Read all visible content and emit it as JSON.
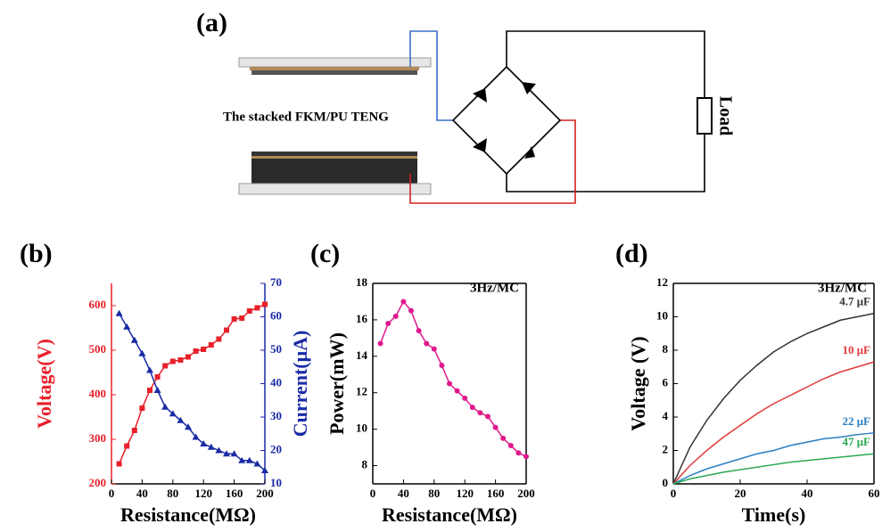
{
  "diagram": {
    "label": "(a)",
    "caption": "The stacked FKM/PU TENG",
    "load": "Load"
  },
  "chart_data": [
    {
      "type": "line",
      "label": "(b)",
      "xlabel": "Resistance(MΩ)",
      "ylabel": "Voltage(V)",
      "y2label": "Current(μA)",
      "x": [
        10,
        20,
        30,
        40,
        50,
        60,
        70,
        80,
        90,
        100,
        110,
        120,
        130,
        140,
        150,
        160,
        170,
        180,
        190,
        200
      ],
      "xlim": [
        0,
        200
      ],
      "xticks": [
        0,
        40,
        80,
        120,
        160,
        200
      ],
      "ylim": [
        200,
        650
      ],
      "yticks": [
        200,
        300,
        400,
        500,
        600
      ],
      "y2lim": [
        10,
        70
      ],
      "y2ticks": [
        10,
        20,
        30,
        40,
        50,
        60,
        70
      ],
      "series": [
        {
          "color": "#e8202a",
          "marker": "square",
          "values": [
            245,
            285,
            320,
            370,
            410,
            440,
            465,
            475,
            478,
            485,
            498,
            502,
            512,
            525,
            545,
            570,
            572,
            588,
            595,
            603
          ]
        },
        {
          "color": "#1a2aa5",
          "marker": "triangle",
          "axis": "y2",
          "values": [
            61,
            57,
            53,
            49,
            44,
            38,
            33,
            31,
            29,
            27,
            24,
            22,
            21,
            20,
            19,
            19,
            17,
            17,
            16,
            14
          ]
        }
      ]
    },
    {
      "type": "line",
      "label": "(c)",
      "xlabel": "Resistance(MΩ)",
      "ylabel": "Power(mW)",
      "annotation": "3Hz/MC",
      "x": [
        10,
        20,
        30,
        40,
        50,
        60,
        70,
        80,
        90,
        100,
        110,
        120,
        130,
        140,
        150,
        160,
        170,
        180,
        190,
        200
      ],
      "xlim": [
        0,
        200
      ],
      "xticks": [
        0,
        40,
        80,
        120,
        160,
        200
      ],
      "ylim": [
        7,
        18
      ],
      "yticks": [
        8,
        10,
        12,
        14,
        16,
        18
      ],
      "series": [
        {
          "color": "#e0198c",
          "marker": "circle",
          "values": [
            14.7,
            15.8,
            16.2,
            17.0,
            16.5,
            15.4,
            14.7,
            14.4,
            13.5,
            12.5,
            12.1,
            11.7,
            11.2,
            10.9,
            10.7,
            10.1,
            9.5,
            9.1,
            8.7,
            8.5
          ]
        }
      ]
    },
    {
      "type": "line",
      "label": "(d)",
      "xlabel": "Time(s)",
      "ylabel": "Voltage (V)",
      "annotation": "3Hz/MC",
      "x": [
        0,
        5,
        10,
        15,
        20,
        25,
        30,
        35,
        40,
        45,
        50,
        55,
        60
      ],
      "xlim": [
        0,
        60
      ],
      "xticks": [
        0,
        20,
        40,
        60
      ],
      "ylim": [
        0,
        12
      ],
      "yticks": [
        0,
        2,
        4,
        6,
        8,
        10,
        12
      ],
      "series": [
        {
          "name": "4.7 μF",
          "color": "#333333",
          "values": [
            0,
            2.2,
            3.8,
            5.1,
            6.2,
            7.1,
            7.9,
            8.5,
            9.0,
            9.4,
            9.8,
            10.0,
            10.2
          ]
        },
        {
          "name": "10 μF",
          "color": "#e03a3a",
          "values": [
            0,
            1.1,
            2.0,
            2.8,
            3.5,
            4.2,
            4.8,
            5.3,
            5.8,
            6.3,
            6.7,
            7.0,
            7.3
          ]
        },
        {
          "name": "22 μF",
          "color": "#2a7ec0",
          "values": [
            0,
            0.5,
            0.9,
            1.2,
            1.5,
            1.8,
            2.0,
            2.3,
            2.5,
            2.7,
            2.8,
            2.95,
            3.05
          ]
        },
        {
          "name": "47 μF",
          "color": "#2aa852",
          "values": [
            0,
            0.3,
            0.5,
            0.7,
            0.85,
            1.0,
            1.15,
            1.3,
            1.4,
            1.5,
            1.6,
            1.7,
            1.8
          ]
        }
      ]
    }
  ]
}
